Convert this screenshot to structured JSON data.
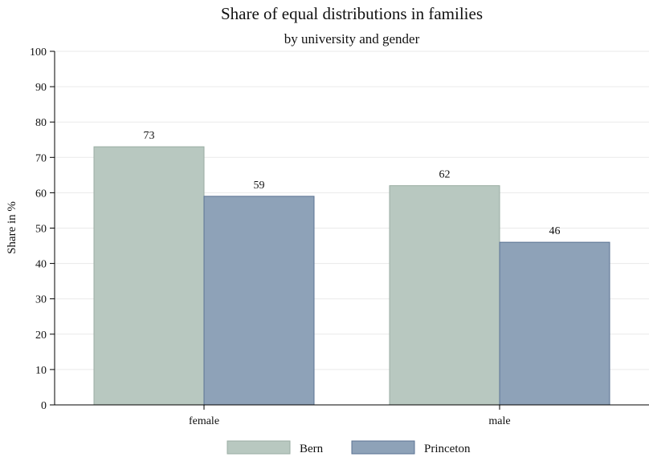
{
  "chart_data": {
    "type": "bar",
    "title": "Share of equal distributions in families",
    "subtitle": "by university and gender",
    "xlabel": "",
    "ylabel": "Share in %",
    "ylim": [
      0,
      100
    ],
    "yticks": [
      0,
      10,
      20,
      30,
      40,
      50,
      60,
      70,
      80,
      90,
      100
    ],
    "categories": [
      "female",
      "male"
    ],
    "series": [
      {
        "name": "Bern",
        "values": [
          73,
          62
        ],
        "labels": [
          "73",
          "62"
        ],
        "color": "#b8c8c0"
      },
      {
        "name": "Princeton",
        "values": [
          59,
          46
        ],
        "labels": [
          "59",
          "46"
        ],
        "color": "#8ea2b8"
      }
    ],
    "grid": true,
    "legend_position": "bottom",
    "colors": {
      "bern_edge": "#9aada3",
      "princeton_edge": "#5b7393",
      "grid": "#eaeaea",
      "axis": "#000000"
    }
  }
}
